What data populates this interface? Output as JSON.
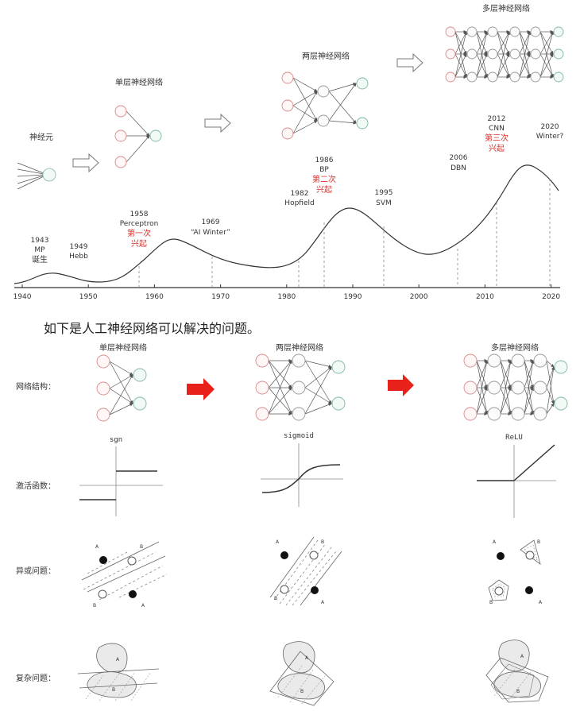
{
  "timeline": {
    "years": [
      "1940",
      "1950",
      "1960",
      "1970",
      "1980",
      "1990",
      "2000",
      "2010",
      "2020"
    ],
    "stages": {
      "neuron": "神经元",
      "single": "单层神经网络",
      "double": "两层神经网络",
      "multi": "多层神经网络"
    },
    "events": [
      {
        "year": "1943",
        "lines": [
          "MP",
          "诞生"
        ]
      },
      {
        "year": "1949",
        "lines": [
          "Hebb"
        ]
      },
      {
        "year": "1958",
        "lines": [
          "Perceptron"
        ],
        "red": [
          "第一次",
          "兴起"
        ]
      },
      {
        "year": "1969",
        "lines": [
          "“AI Winter”"
        ]
      },
      {
        "year": "1982",
        "lines": [
          "Hopfield"
        ]
      },
      {
        "year": "1986",
        "lines": [
          "BP"
        ],
        "red": [
          "第二次",
          "兴起"
        ]
      },
      {
        "year": "1995",
        "lines": [
          "SVM"
        ]
      },
      {
        "year": "2006",
        "lines": [
          "DBN"
        ]
      },
      {
        "year": "2012",
        "lines": [
          "CNN"
        ],
        "red": [
          "第三次",
          "兴起"
        ]
      },
      {
        "year": "2020",
        "lines": [
          "Winter?"
        ]
      }
    ]
  },
  "caption": "如下是人工神经网络可以解决的问题。",
  "comparison": {
    "columns": [
      "单层神经网络",
      "两层神经网络",
      "多层神经网络"
    ],
    "rows": [
      "网络结构：",
      "激活函数：",
      "异或问题：",
      "复杂问题："
    ],
    "activations": [
      "sgn",
      "sigmoid",
      "ReLU"
    ],
    "point_labels": {
      "a": "A",
      "b": "B"
    }
  },
  "colors": {
    "red_arrow": "#e8221a",
    "red_text": "#d9322c",
    "node_red": "#d88a8a",
    "node_green": "#7fb7a3"
  }
}
